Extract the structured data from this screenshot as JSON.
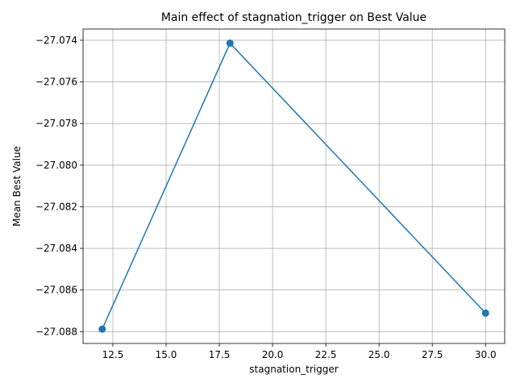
{
  "chart_data": {
    "type": "line",
    "title": "Main effect of stagnation_trigger on Best Value",
    "xlabel": "stagnation_trigger",
    "ylabel": "Mean Best Value",
    "xlim": [
      11.1,
      30.9
    ],
    "ylim": [
      -27.08857,
      -27.07346
    ],
    "xticks": [
      12.5,
      15.0,
      17.5,
      20.0,
      22.5,
      25.0,
      27.5,
      30.0
    ],
    "xtick_labels": [
      "12.5",
      "15.0",
      "17.5",
      "20.0",
      "22.5",
      "25.0",
      "27.5",
      "30.0"
    ],
    "yticks": [
      -27.088,
      -27.086,
      -27.084,
      -27.082,
      -27.08,
      -27.078,
      -27.076,
      -27.074
    ],
    "ytick_labels": [
      "−27.088",
      "−27.086",
      "−27.084",
      "−27.082",
      "−27.080",
      "−27.078",
      "−27.076",
      "−27.074"
    ],
    "grid": true,
    "series": [
      {
        "color": "#1f77b4",
        "marker": "circle",
        "x": [
          12,
          18,
          30
        ],
        "y": [
          -27.08788,
          -27.07414,
          -27.08711
        ]
      }
    ]
  }
}
